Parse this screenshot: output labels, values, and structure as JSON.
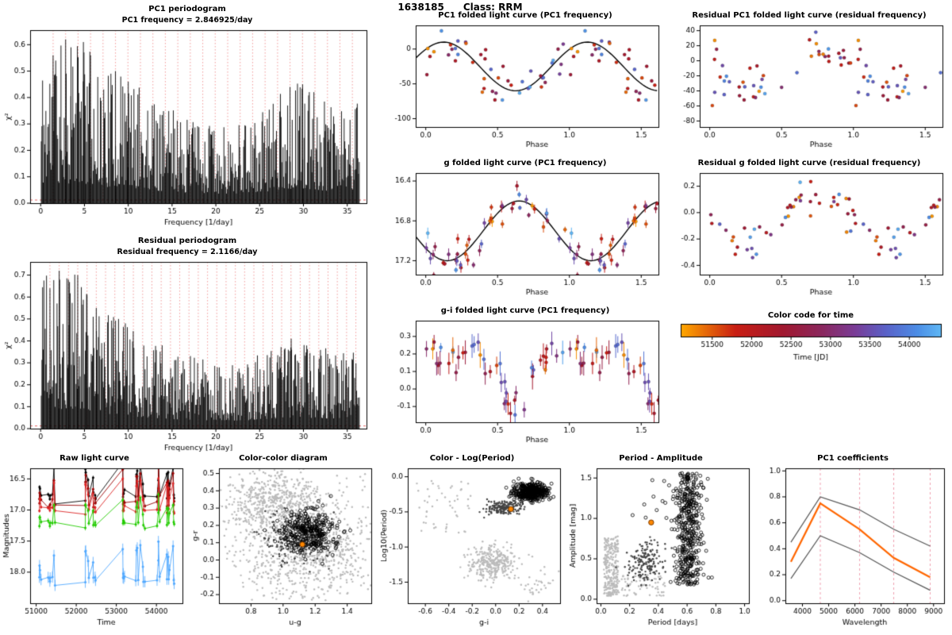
{
  "header": {
    "id": "1638185",
    "class_label": "Class: RRM",
    "pc1_frequency_per_day": 2.846925,
    "residual_frequency_per_day": 2.1166
  },
  "colors": {
    "accent_orange": "#FF8800",
    "curve_black": "#000000",
    "red_dashed": "#F08080",
    "gray_light": "#BBBBBB",
    "gray_dark": "#444444",
    "time_stops": [
      [
        51100,
        "#FFA800"
      ],
      [
        51800,
        "#C81E14"
      ],
      [
        52400,
        "#A01830"
      ],
      [
        52900,
        "#8A2860"
      ],
      [
        53300,
        "#7A3C96"
      ],
      [
        53700,
        "#5A62C8"
      ],
      [
        54100,
        "#4C8EE6"
      ],
      [
        54400,
        "#5FB8F5"
      ]
    ]
  },
  "chart_data": [
    {
      "type": "periodogram",
      "title": "PC1 periodogram",
      "subtitle": "PC1 frequency = 2.846925/day",
      "xlabel": "Frequency [1/day]",
      "ylabel": "χ²",
      "xlim": [
        -1.2,
        37.2
      ],
      "ylim": [
        0,
        0.655
      ],
      "xticks": [
        0,
        5,
        10,
        15,
        20,
        25,
        30,
        35
      ],
      "xdec": 0,
      "yticks": [
        0.0,
        0.1,
        0.2,
        0.3,
        0.4,
        0.5,
        0.6
      ],
      "ydec": 1,
      "fmax": 36.4,
      "seed": 11,
      "red_start": 1.4234625,
      "red_spacing": 1.4234625,
      "threshold": 0.012,
      "envelope": [
        [
          0,
          0.58
        ],
        [
          1,
          0.62
        ],
        [
          5,
          0.62
        ],
        [
          7,
          0.52
        ],
        [
          10,
          0.47
        ],
        [
          13,
          0.4
        ],
        [
          16,
          0.34
        ],
        [
          19,
          0.3
        ],
        [
          22,
          0.3
        ],
        [
          25,
          0.33
        ],
        [
          27,
          0.42
        ],
        [
          29,
          0.46
        ],
        [
          31,
          0.44
        ],
        [
          33,
          0.37
        ],
        [
          36.4,
          0.4
        ]
      ],
      "peaks": [
        [
          1.42,
          0.56
        ],
        [
          2.85,
          0.62
        ],
        [
          3.46,
          0.59
        ],
        [
          4.27,
          0.55
        ],
        [
          4.88,
          0.61
        ],
        [
          5.69,
          0.56
        ],
        [
          8.54,
          0.5
        ],
        [
          10.0,
          0.46
        ],
        [
          28.47,
          0.44
        ],
        [
          29.9,
          0.45
        ]
      ],
      "ml": 34,
      "mb": 30,
      "mt": 4,
      "mr": 6
    },
    {
      "type": "periodogram",
      "title": "Residual periodogram",
      "subtitle": "Residual frequency = 2.1166/day",
      "xlabel": "Frequency [1/day]",
      "ylabel": "χ²",
      "xlim": [
        -1.2,
        37.2
      ],
      "ylim": [
        0,
        0.76
      ],
      "xticks": [
        0,
        5,
        10,
        15,
        20,
        25,
        30,
        35
      ],
      "xdec": 0,
      "yticks": [
        0.0,
        0.1,
        0.2,
        0.3,
        0.4,
        0.5,
        0.6,
        0.7
      ],
      "ydec": 1,
      "fmax": 36.4,
      "seed": 12,
      "red_start": 1.0583,
      "red_spacing": 1.0583,
      "threshold": 0.012,
      "envelope": [
        [
          0,
          0.66
        ],
        [
          1,
          0.72
        ],
        [
          4,
          0.72
        ],
        [
          6,
          0.6
        ],
        [
          9,
          0.5
        ],
        [
          12,
          0.42
        ],
        [
          15,
          0.36
        ],
        [
          18,
          0.32
        ],
        [
          21,
          0.3
        ],
        [
          24,
          0.32
        ],
        [
          27,
          0.38
        ],
        [
          29,
          0.42
        ],
        [
          31,
          0.4
        ],
        [
          34,
          0.36
        ],
        [
          36.4,
          0.38
        ]
      ],
      "peaks": [
        [
          1.06,
          0.64
        ],
        [
          2.12,
          0.72
        ],
        [
          3.17,
          0.68
        ],
        [
          4.23,
          0.7
        ],
        [
          5.29,
          0.61
        ],
        [
          6.35,
          0.55
        ],
        [
          8.89,
          0.5
        ],
        [
          28.6,
          0.41
        ]
      ],
      "ml": 34,
      "mb": 30,
      "mt": 4,
      "mr": 6
    },
    {
      "type": "folded",
      "title": "PC1 folded light curve (PC1 frequency)",
      "xlabel": "Phase",
      "xlim": [
        -0.07,
        1.62
      ],
      "xticks": [
        0.0,
        0.5,
        1.0,
        1.5
      ],
      "xdec": 1,
      "ylim": [
        -112,
        34
      ],
      "yticks": [
        0,
        -50,
        -100
      ],
      "ydec": 0,
      "seed": 31,
      "n": 46,
      "noise": 16,
      "err": 0,
      "model": {
        "kind": "cos",
        "mean": -25,
        "amp": 35,
        "phase0": 0.125
      },
      "curve": true,
      "tspan": [
        51150,
        54380
      ],
      "ml": 38,
      "mb": 28,
      "mt": 4,
      "mr": 8
    },
    {
      "type": "folded",
      "title": "g folded light curve (PC1 frequency)",
      "xlabel": "Phase",
      "xlim": [
        -0.07,
        1.62
      ],
      "xticks": [
        0.0,
        0.5,
        1.0,
        1.5
      ],
      "xdec": 1,
      "ylim": [
        17.34,
        16.32
      ],
      "yticks": [
        16.4,
        16.8,
        17.2
      ],
      "ydec": 1,
      "seed": 32,
      "n": 46,
      "noise": 0.1,
      "err": 0.04,
      "model": {
        "kind": "cos",
        "mean": 16.9,
        "amp": 0.3,
        "phase0": 0.15
      },
      "curve": true,
      "tspan": [
        51150,
        54380
      ],
      "ml": 38,
      "mb": 28,
      "mt": 4,
      "mr": 8
    },
    {
      "type": "folded",
      "title": "g-i folded light curve (PC1 frequency)",
      "xlabel": "Phase",
      "xlim": [
        -0.07,
        1.62
      ],
      "xticks": [
        0.0,
        0.5,
        1.0,
        1.5
      ],
      "xdec": 1,
      "ylim": [
        -0.19,
        0.39
      ],
      "yticks": [
        -0.1,
        0.0,
        0.1,
        0.2,
        0.3
      ],
      "ydec": 1,
      "seed": 33,
      "n": 46,
      "noise": 0.05,
      "err": 0.05,
      "model": {
        "kind": "dip",
        "base": 0.21,
        "depth": -0.32,
        "c": 0.63,
        "w": 0.09
      },
      "curve": false,
      "tspan": [
        51150,
        54380
      ],
      "ml": 38,
      "mb": 28,
      "mt": 4,
      "mr": 8
    },
    {
      "type": "folded",
      "title": "Residual PC1 folded light curve (residual frequency)",
      "xlabel": "Phase",
      "xlim": [
        -0.07,
        1.62
      ],
      "xticks": [
        0.0,
        0.5,
        1.0,
        1.5
      ],
      "xdec": 1,
      "ylim": [
        -88,
        47
      ],
      "yticks": [
        40,
        20,
        0,
        -20,
        -40,
        -60,
        -80
      ],
      "ydec": 0,
      "seed": 34,
      "n": 46,
      "noise": 17,
      "err": 0,
      "model": {
        "kind": "cos",
        "mean": -8,
        "amp": 27,
        "phase0": 0.75
      },
      "curve": false,
      "tspan": [
        51150,
        54380
      ],
      "ml": 38,
      "mb": 28,
      "mt": 4,
      "mr": 8
    },
    {
      "type": "folded",
      "title": "Residual g folded light curve (residual frequency)",
      "xlabel": "Phase",
      "xlim": [
        -0.07,
        1.62
      ],
      "xticks": [
        0.0,
        0.5,
        1.0,
        1.5
      ],
      "xdec": 1,
      "ylim": [
        -0.47,
        0.3
      ],
      "yticks": [
        0.2,
        0.0,
        -0.2,
        -0.4
      ],
      "ydec": 1,
      "seed": 35,
      "n": 46,
      "noise": 0.07,
      "err": 0,
      "model": {
        "kind": "cos",
        "mean": -0.05,
        "amp": 0.16,
        "phase0": 0.75
      },
      "curve": false,
      "tspan": [
        51150,
        54380
      ],
      "ml": 38,
      "mb": 28,
      "mt": 4,
      "mr": 8
    },
    {
      "type": "colorbar",
      "title": "Color code for time",
      "xlabel": "Time [JD]",
      "xlim": [
        51100,
        54400
      ],
      "xticks": [
        51500,
        52000,
        52500,
        53000,
        53500,
        54000
      ],
      "xdec": 0
    },
    {
      "type": "rawlc",
      "title": "Raw light curve",
      "xlabel": "Time",
      "ylabel": "Magnitudes",
      "xlim": [
        50850,
        54650
      ],
      "xticks": [
        51000,
        52000,
        53000,
        54000
      ],
      "xdec": 0,
      "ylim": [
        18.5,
        16.33
      ],
      "yticks": [
        16.5,
        17.0,
        17.5,
        18.0
      ],
      "ydec": 1,
      "seed": 41,
      "clusters": [
        {
          "t": 51080,
          "n": 4,
          "spread": 120
        },
        {
          "t": 51300,
          "n": 3,
          "spread": 120
        },
        {
          "t": 51450,
          "n": 3,
          "spread": 100
        },
        {
          "t": 52250,
          "n": 5,
          "spread": 140
        },
        {
          "t": 52450,
          "n": 4,
          "spread": 100
        },
        {
          "t": 53200,
          "n": 5,
          "spread": 140
        },
        {
          "t": 53550,
          "n": 5,
          "spread": 140
        },
        {
          "t": 53700,
          "n": 3,
          "spread": 80
        },
        {
          "t": 54050,
          "n": 4,
          "spread": 120
        },
        {
          "t": 54300,
          "n": 5,
          "spread": 120
        },
        {
          "t": 54430,
          "n": 3,
          "spread": 60
        }
      ],
      "series": [
        {
          "color": "#000000",
          "base": 16.78,
          "scale": 0.8,
          "err": 0.03
        },
        {
          "color": "#990000",
          "base": 16.9,
          "scale": 0.85,
          "err": 0.03
        },
        {
          "color": "#DD2222",
          "base": 17.0,
          "scale": 0.8,
          "err": 0.03
        },
        {
          "color": "#22CC00",
          "base": 17.22,
          "scale": 0.6,
          "err": 0.04
        },
        {
          "color": "#4FA8FF",
          "base": 18.12,
          "scale": 0.9,
          "err": 0.09
        }
      ],
      "ml": 36,
      "mb": 30,
      "mt": 4,
      "mr": 6
    },
    {
      "type": "scatter_groups",
      "title": "Color-color diagram",
      "xlabel": "u-g",
      "ylabel": "g-r",
      "xlim": [
        0.6,
        1.55
      ],
      "xticks": [
        0.8,
        1.0,
        1.2,
        1.4
      ],
      "xdec": 1,
      "ylim": [
        -0.25,
        0.53
      ],
      "yticks": [
        -0.2,
        -0.1,
        0.0,
        0.1,
        0.2,
        0.3,
        0.4,
        0.5
      ],
      "ydec": 1,
      "seed": 51,
      "groups": [
        {
          "n": 600,
          "style": "dot",
          "color": "#BBBBBB",
          "x": {
            "c": 0.95,
            "s": 0.15
          },
          "y": {
            "c": 0.32,
            "s": 0.09
          }
        },
        {
          "n": 700,
          "style": "dot",
          "color": "#BBBBBB",
          "x": {
            "c": 1.15,
            "s": 0.2
          },
          "y": {
            "c": 0.04,
            "s": 0.13
          }
        },
        {
          "n": 150,
          "style": "dot",
          "color": "#BBBBBB",
          "x": {
            "u": [
              0.62,
              1.53
            ]
          },
          "y": {
            "u": [
              -0.24,
              0.5
            ]
          }
        },
        {
          "n": 220,
          "style": "dot",
          "color": "#444444",
          "x": {
            "c": 1.08,
            "s": 0.1
          },
          "y": {
            "c": 0.13,
            "s": 0.07
          }
        },
        {
          "n": 320,
          "style": "circle",
          "color": "#000000",
          "x": {
            "c": 1.16,
            "s": 0.09
          },
          "y": {
            "c": 0.16,
            "s": 0.06
          }
        },
        {
          "n": 1,
          "style": "omark",
          "color": "#FF8800",
          "x": {
            "c": 1.12,
            "s": 0
          },
          "y": {
            "c": 0.09,
            "s": 0
          }
        }
      ],
      "ml": 36,
      "mb": 30,
      "mt": 4,
      "mr": 6
    },
    {
      "type": "scatter_groups",
      "title": "Color - Log(Period)",
      "xlabel": "g-i",
      "ylabel": "Log10(Period)",
      "xlim": [
        -0.75,
        0.55
      ],
      "xticks": [
        -0.6,
        -0.4,
        -0.2,
        0.0,
        0.2,
        0.4
      ],
      "xdec": 1,
      "ylim": [
        -1.8,
        0.12
      ],
      "yticks": [
        0.0,
        -0.5,
        -1.0,
        -1.5
      ],
      "ydec": 1,
      "seed": 52,
      "groups": [
        {
          "n": 320,
          "style": "dot",
          "color": "#BBBBBB",
          "x": {
            "c": -0.02,
            "s": 0.1
          },
          "y": {
            "c": -1.22,
            "s": 0.13
          }
        },
        {
          "n": 50,
          "style": "dot",
          "color": "#BBBBBB",
          "x": {
            "u": [
              -0.68,
              -0.2
            ]
          },
          "y": {
            "u": [
              -0.8,
              -0.05
            ]
          }
        },
        {
          "n": 30,
          "style": "dot",
          "color": "#BBBBBB",
          "x": {
            "c": 0.33,
            "s": 0.08
          },
          "y": {
            "c": -1.52,
            "s": 0.1
          }
        },
        {
          "n": 190,
          "style": "dot",
          "color": "#444444",
          "x": {
            "c": 0.07,
            "s": 0.07
          },
          "y": {
            "c": -0.44,
            "s": 0.05
          }
        },
        {
          "n": 420,
          "style": "circle",
          "color": "#000000",
          "x": {
            "c": 0.3,
            "s": 0.07
          },
          "y": {
            "c": -0.21,
            "s": 0.06
          }
        },
        {
          "n": 1,
          "style": "omark",
          "color": "#FF8800",
          "x": {
            "c": 0.13,
            "s": 0
          },
          "y": {
            "c": -0.46,
            "s": 0
          }
        }
      ],
      "ml": 36,
      "mb": 30,
      "mt": 4,
      "mr": 6
    },
    {
      "type": "scatter_groups",
      "title": "Period - Amplitude",
      "xlabel": "Period [days]",
      "ylabel": "Amplitude [mag]",
      "xlim": [
        -0.03,
        1.03
      ],
      "xticks": [
        0.0,
        0.2,
        0.4,
        0.6,
        0.8,
        1.0
      ],
      "xdec": 1,
      "ylim": [
        -0.05,
        1.62
      ],
      "yticks": [
        0.0,
        0.5,
        1.0,
        1.5
      ],
      "ydec": 1,
      "seed": 53,
      "groups": [
        {
          "n": 260,
          "style": "dot",
          "color": "#BBBBBB",
          "x": {
            "u": [
              0.02,
              0.12
            ]
          },
          "y": {
            "u": [
              0.04,
              0.78
            ]
          }
        },
        {
          "n": 90,
          "style": "dot",
          "color": "#BBBBBB",
          "x": {
            "u": [
              0.05,
              0.45
            ]
          },
          "y": {
            "u": [
              0.04,
              0.3
            ]
          }
        },
        {
          "n": 170,
          "style": "dot",
          "color": "#444444",
          "x": {
            "c": 0.31,
            "s": 0.06
          },
          "y": {
            "c": 0.45,
            "s": 0.13
          }
        },
        {
          "n": 420,
          "style": "circle",
          "color": "#000000",
          "x": {
            "c": 0.61,
            "s": 0.05
          },
          "y": {
            "u": [
              0.18,
              1.56
            ]
          }
        },
        {
          "n": 18,
          "style": "circle",
          "color": "#000000",
          "x": {
            "c": 0.45,
            "s": 0.09
          },
          "y": {
            "c": 1.25,
            "s": 0.18
          }
        },
        {
          "n": 1,
          "style": "omark",
          "color": "#FF8800",
          "x": {
            "c": 0.35,
            "s": 0
          },
          "y": {
            "c": 0.95,
            "s": 0
          }
        }
      ],
      "ml": 36,
      "mb": 30,
      "mt": 4,
      "mr": 6
    },
    {
      "type": "multiline",
      "title": "PC1 coefficients",
      "xlabel": "Wavelength",
      "xlim": [
        3350,
        9400
      ],
      "xticks": [
        4000,
        5000,
        6000,
        7000,
        8000,
        9000
      ],
      "xdec": 0,
      "ylim": [
        -0.02,
        1.02
      ],
      "yticks": [
        0.0,
        0.2,
        0.4,
        0.6,
        0.8,
        1.0
      ],
      "ydec": 1,
      "x": [
        3560,
        4680,
        6180,
        7480,
        8870
      ],
      "vlines": [
        4680,
        6180,
        7480,
        8870
      ],
      "lines": [
        {
          "color": "#555555",
          "w": 1.2,
          "v": [
            0.45,
            0.8,
            0.7,
            0.55,
            0.42
          ]
        },
        {
          "color": "#FF6600",
          "w": 2.2,
          "v": [
            0.3,
            0.75,
            0.55,
            0.33,
            0.18
          ]
        },
        {
          "color": "#555555",
          "w": 1.2,
          "v": [
            0.17,
            0.5,
            0.37,
            0.22,
            0.08
          ]
        }
      ],
      "ml": 36,
      "mb": 30,
      "mt": 4,
      "mr": 6
    }
  ]
}
